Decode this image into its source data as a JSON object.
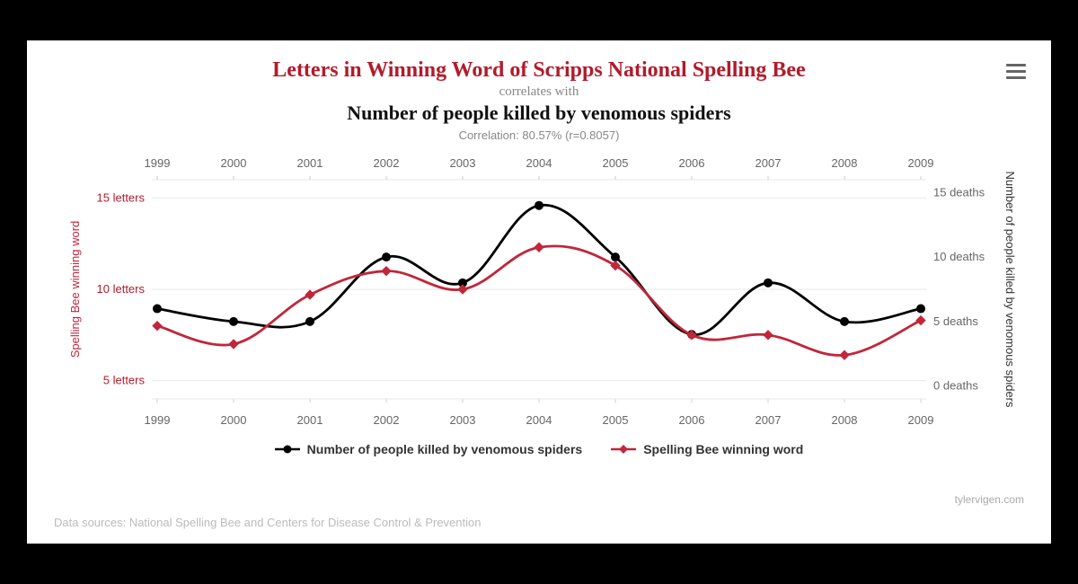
{
  "titles": {
    "main": "Letters in Winning Word of Scripps National Spelling Bee",
    "correlates": "correlates with",
    "second": "Number of people killed by venomous spiders",
    "correlation": "Correlation: 80.57% (r=0.8057)"
  },
  "chart": {
    "type": "dual-axis-line",
    "background_color": "#ffffff",
    "grid_color": "#e7e7e7",
    "axis_line_color": "#cccccc",
    "tick_font_size": 13,
    "line_width": 2.8,
    "marker_radius": 5,
    "smoothing": true,
    "x": {
      "categories": [
        "1999",
        "2000",
        "2001",
        "2002",
        "2003",
        "2004",
        "2005",
        "2006",
        "2007",
        "2008",
        "2009"
      ]
    },
    "left_axis": {
      "label": "Spelling Bee winning word",
      "color": "#c0273a",
      "ticks": [
        {
          "value": 5,
          "label": "5 letters"
        },
        {
          "value": 10,
          "label": "10 letters"
        },
        {
          "value": 15,
          "label": "15 letters"
        }
      ],
      "min": 4,
      "max": 16
    },
    "right_axis": {
      "label": "Number of people killed by venomous spiders",
      "color": "#222222",
      "ticks": [
        {
          "value": 0,
          "label": "0 deaths"
        },
        {
          "value": 5,
          "label": "5 deaths"
        },
        {
          "value": 10,
          "label": "10 deaths"
        },
        {
          "value": 15,
          "label": "15 deaths"
        }
      ],
      "min": -1,
      "max": 16
    },
    "series": [
      {
        "id": "deaths",
        "name": "Number of people killed by venomous spiders",
        "axis": "right",
        "color": "#000000",
        "marker": "circle",
        "values": [
          6,
          5,
          5,
          10,
          8,
          14,
          10,
          4,
          8,
          5,
          6
        ]
      },
      {
        "id": "letters",
        "name": "Spelling Bee winning word",
        "axis": "left",
        "color": "#c0273a",
        "marker": "diamond",
        "values": [
          8,
          7,
          9.7,
          11,
          10,
          12.3,
          11.3,
          7.5,
          7.5,
          6.4,
          8.3
        ]
      }
    ]
  },
  "legend": {
    "items": [
      {
        "series": "deaths",
        "label": "Number of people killed by venomous spiders"
      },
      {
        "series": "letters",
        "label": "Spelling Bee winning word"
      }
    ]
  },
  "attribution": "tylervigen.com",
  "sources": "Data sources: National Spelling Bee and Centers for Disease Control & Prevention",
  "icons": {
    "hamburger": "hamburger-icon"
  }
}
